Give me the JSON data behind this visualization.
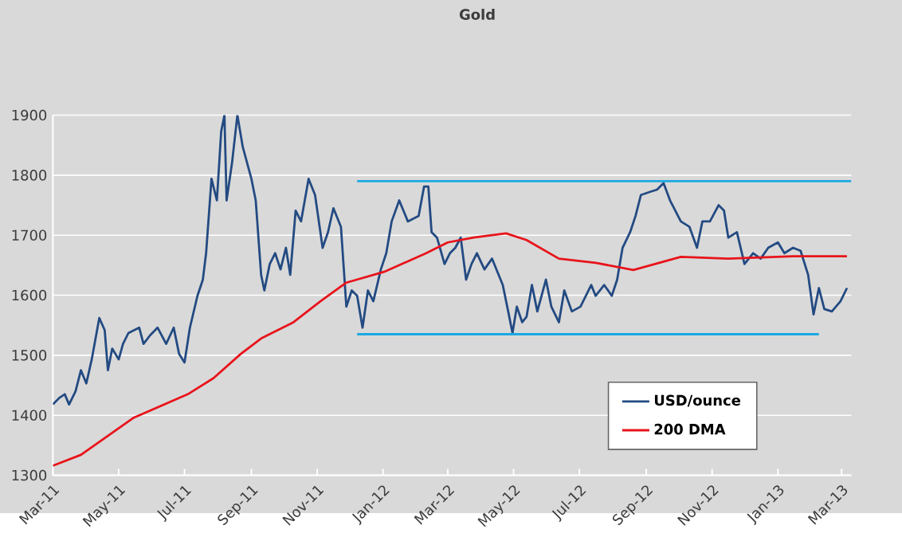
{
  "chart_data": {
    "type": "line",
    "title": "Gold",
    "xlim": [
      "2011-03-01",
      "2013-03-10"
    ],
    "xticks": [
      {
        "value": "2011-03-01",
        "label": "Mar-11"
      },
      {
        "value": "2011-05-01",
        "label": "May-11"
      },
      {
        "value": "2011-07-01",
        "label": "Jul-11"
      },
      {
        "value": "2011-09-01",
        "label": "Sep-11"
      },
      {
        "value": "2011-11-01",
        "label": "Nov-11"
      },
      {
        "value": "2012-01-01",
        "label": "Jan-12"
      },
      {
        "value": "2012-03-01",
        "label": "Mar-12"
      },
      {
        "value": "2012-05-01",
        "label": "May-12"
      },
      {
        "value": "2012-07-01",
        "label": "Jul-12"
      },
      {
        "value": "2012-09-01",
        "label": "Sep-12"
      },
      {
        "value": "2012-11-01",
        "label": "Nov-12"
      },
      {
        "value": "2013-01-01",
        "label": "Jan-13"
      },
      {
        "value": "2013-03-01",
        "label": "Mar-13"
      }
    ],
    "ylim": [
      1300,
      1900
    ],
    "yticks": [
      1300,
      1400,
      1500,
      1600,
      1700,
      1800,
      1900
    ],
    "grid": "y",
    "legend": "bottom right",
    "series": [
      {
        "name": "USD/ounce",
        "color": "#234a82",
        "x": [
          "2011-03-01",
          "2011-03-07",
          "2011-03-12",
          "2011-03-16",
          "2011-03-22",
          "2011-03-27",
          "2011-04-01",
          "2011-04-06",
          "2011-04-13",
          "2011-04-18",
          "2011-04-21",
          "2011-04-25",
          "2011-05-01",
          "2011-05-05",
          "2011-05-10",
          "2011-05-20",
          "2011-05-24",
          "2011-05-30",
          "2011-06-06",
          "2011-06-14",
          "2011-06-21",
          "2011-06-26",
          "2011-07-01",
          "2011-07-06",
          "2011-07-13",
          "2011-07-18",
          "2011-07-21",
          "2011-07-26",
          "2011-07-31",
          "2011-08-04",
          "2011-08-07",
          "2011-08-09",
          "2011-08-14",
          "2011-08-19",
          "2011-08-24",
          "2011-09-01",
          "2011-09-05",
          "2011-09-10",
          "2011-09-13",
          "2011-09-18",
          "2011-09-23",
          "2011-09-28",
          "2011-10-03",
          "2011-10-07",
          "2011-10-12",
          "2011-10-17",
          "2011-10-24",
          "2011-10-30",
          "2011-11-06",
          "2011-11-11",
          "2011-11-16",
          "2011-11-23",
          "2011-11-28",
          "2011-12-03",
          "2011-12-08",
          "2011-12-13",
          "2011-12-18",
          "2011-12-23",
          "2011-12-30",
          "2012-01-04",
          "2012-01-09",
          "2012-01-16",
          "2012-01-24",
          "2012-02-03",
          "2012-02-08",
          "2012-02-12",
          "2012-02-15",
          "2012-02-20",
          "2012-02-27",
          "2012-03-03",
          "2012-03-08",
          "2012-03-13",
          "2012-03-18",
          "2012-03-23",
          "2012-03-28",
          "2012-04-04",
          "2012-04-11",
          "2012-04-21",
          "2012-04-26",
          "2012-04-30",
          "2012-05-04",
          "2012-05-09",
          "2012-05-13",
          "2012-05-18",
          "2012-05-23",
          "2012-05-31",
          "2012-06-05",
          "2012-06-12",
          "2012-06-17",
          "2012-06-24",
          "2012-07-02",
          "2012-07-12",
          "2012-07-16",
          "2012-07-24",
          "2012-07-31",
          "2012-08-05",
          "2012-08-10",
          "2012-08-17",
          "2012-08-22",
          "2012-08-27",
          "2012-09-04",
          "2012-09-11",
          "2012-09-17",
          "2012-09-23",
          "2012-10-03",
          "2012-10-11",
          "2012-10-18",
          "2012-10-23",
          "2012-10-30",
          "2012-11-07",
          "2012-11-12",
          "2012-11-16",
          "2012-11-24",
          "2012-12-01",
          "2012-12-09",
          "2012-12-16",
          "2012-12-23",
          "2013-01-01",
          "2013-01-07",
          "2013-01-15",
          "2013-01-22",
          "2013-01-29",
          "2013-02-03",
          "2013-02-08",
          "2013-02-13",
          "2013-02-20",
          "2013-02-28",
          "2013-03-06"
        ],
        "values": [
          1418,
          1429,
          1435,
          1418,
          1440,
          1475,
          1453,
          1493,
          1562,
          1542,
          1475,
          1511,
          1493,
          1519,
          1537,
          1546,
          1519,
          1533,
          1546,
          1519,
          1546,
          1502,
          1488,
          1546,
          1599,
          1626,
          1670,
          1794,
          1758,
          1873,
          1900,
          1758,
          1820,
          1900,
          1847,
          1794,
          1758,
          1634,
          1608,
          1652,
          1670,
          1643,
          1679,
          1634,
          1741,
          1723,
          1794,
          1767,
          1679,
          1705,
          1745,
          1714,
          1581,
          1608,
          1599,
          1546,
          1608,
          1590,
          1643,
          1670,
          1723,
          1758,
          1723,
          1732,
          1781,
          1781,
          1705,
          1696,
          1652,
          1670,
          1679,
          1696,
          1626,
          1652,
          1670,
          1643,
          1661,
          1617,
          1573,
          1537,
          1581,
          1555,
          1564,
          1617,
          1573,
          1626,
          1581,
          1555,
          1608,
          1573,
          1581,
          1617,
          1599,
          1617,
          1599,
          1626,
          1679,
          1705,
          1732,
          1767,
          1772,
          1776,
          1787,
          1758,
          1723,
          1714,
          1679,
          1723,
          1723,
          1750,
          1741,
          1696,
          1705,
          1652,
          1670,
          1661,
          1679,
          1688,
          1670,
          1679,
          1674,
          1634,
          1568,
          1612,
          1577,
          1573,
          1590,
          1612
        ]
      },
      {
        "name": "200 DMA",
        "color": "#e8141b",
        "x": [
          "2011-03-01",
          "2011-03-27",
          "2011-05-15",
          "2011-07-04",
          "2011-07-28",
          "2011-08-22",
          "2011-09-10",
          "2011-10-10",
          "2011-11-04",
          "2011-11-28",
          "2012-01-02",
          "2012-02-10",
          "2012-03-01",
          "2012-03-25",
          "2012-04-24",
          "2012-05-13",
          "2012-06-12",
          "2012-07-16",
          "2012-08-20",
          "2012-09-13",
          "2012-10-03",
          "2012-11-16",
          "2013-01-15",
          "2013-03-06"
        ],
        "values": [
          1316,
          1334,
          1396,
          1435,
          1462,
          1502,
          1528,
          1555,
          1590,
          1621,
          1639,
          1670,
          1688,
          1696,
          1703,
          1692,
          1661,
          1654,
          1642,
          1654,
          1664,
          1661,
          1665,
          1665
        ]
      },
      {
        "color": "#1ba8e0",
        "x": [
          "2011-12-08",
          "2013-03-10"
        ],
        "values": [
          1790,
          1790
        ]
      },
      {
        "color": "#1ba8e0",
        "x": [
          "2011-12-08",
          "2013-02-08"
        ],
        "values": [
          1535,
          1535
        ]
      }
    ]
  }
}
